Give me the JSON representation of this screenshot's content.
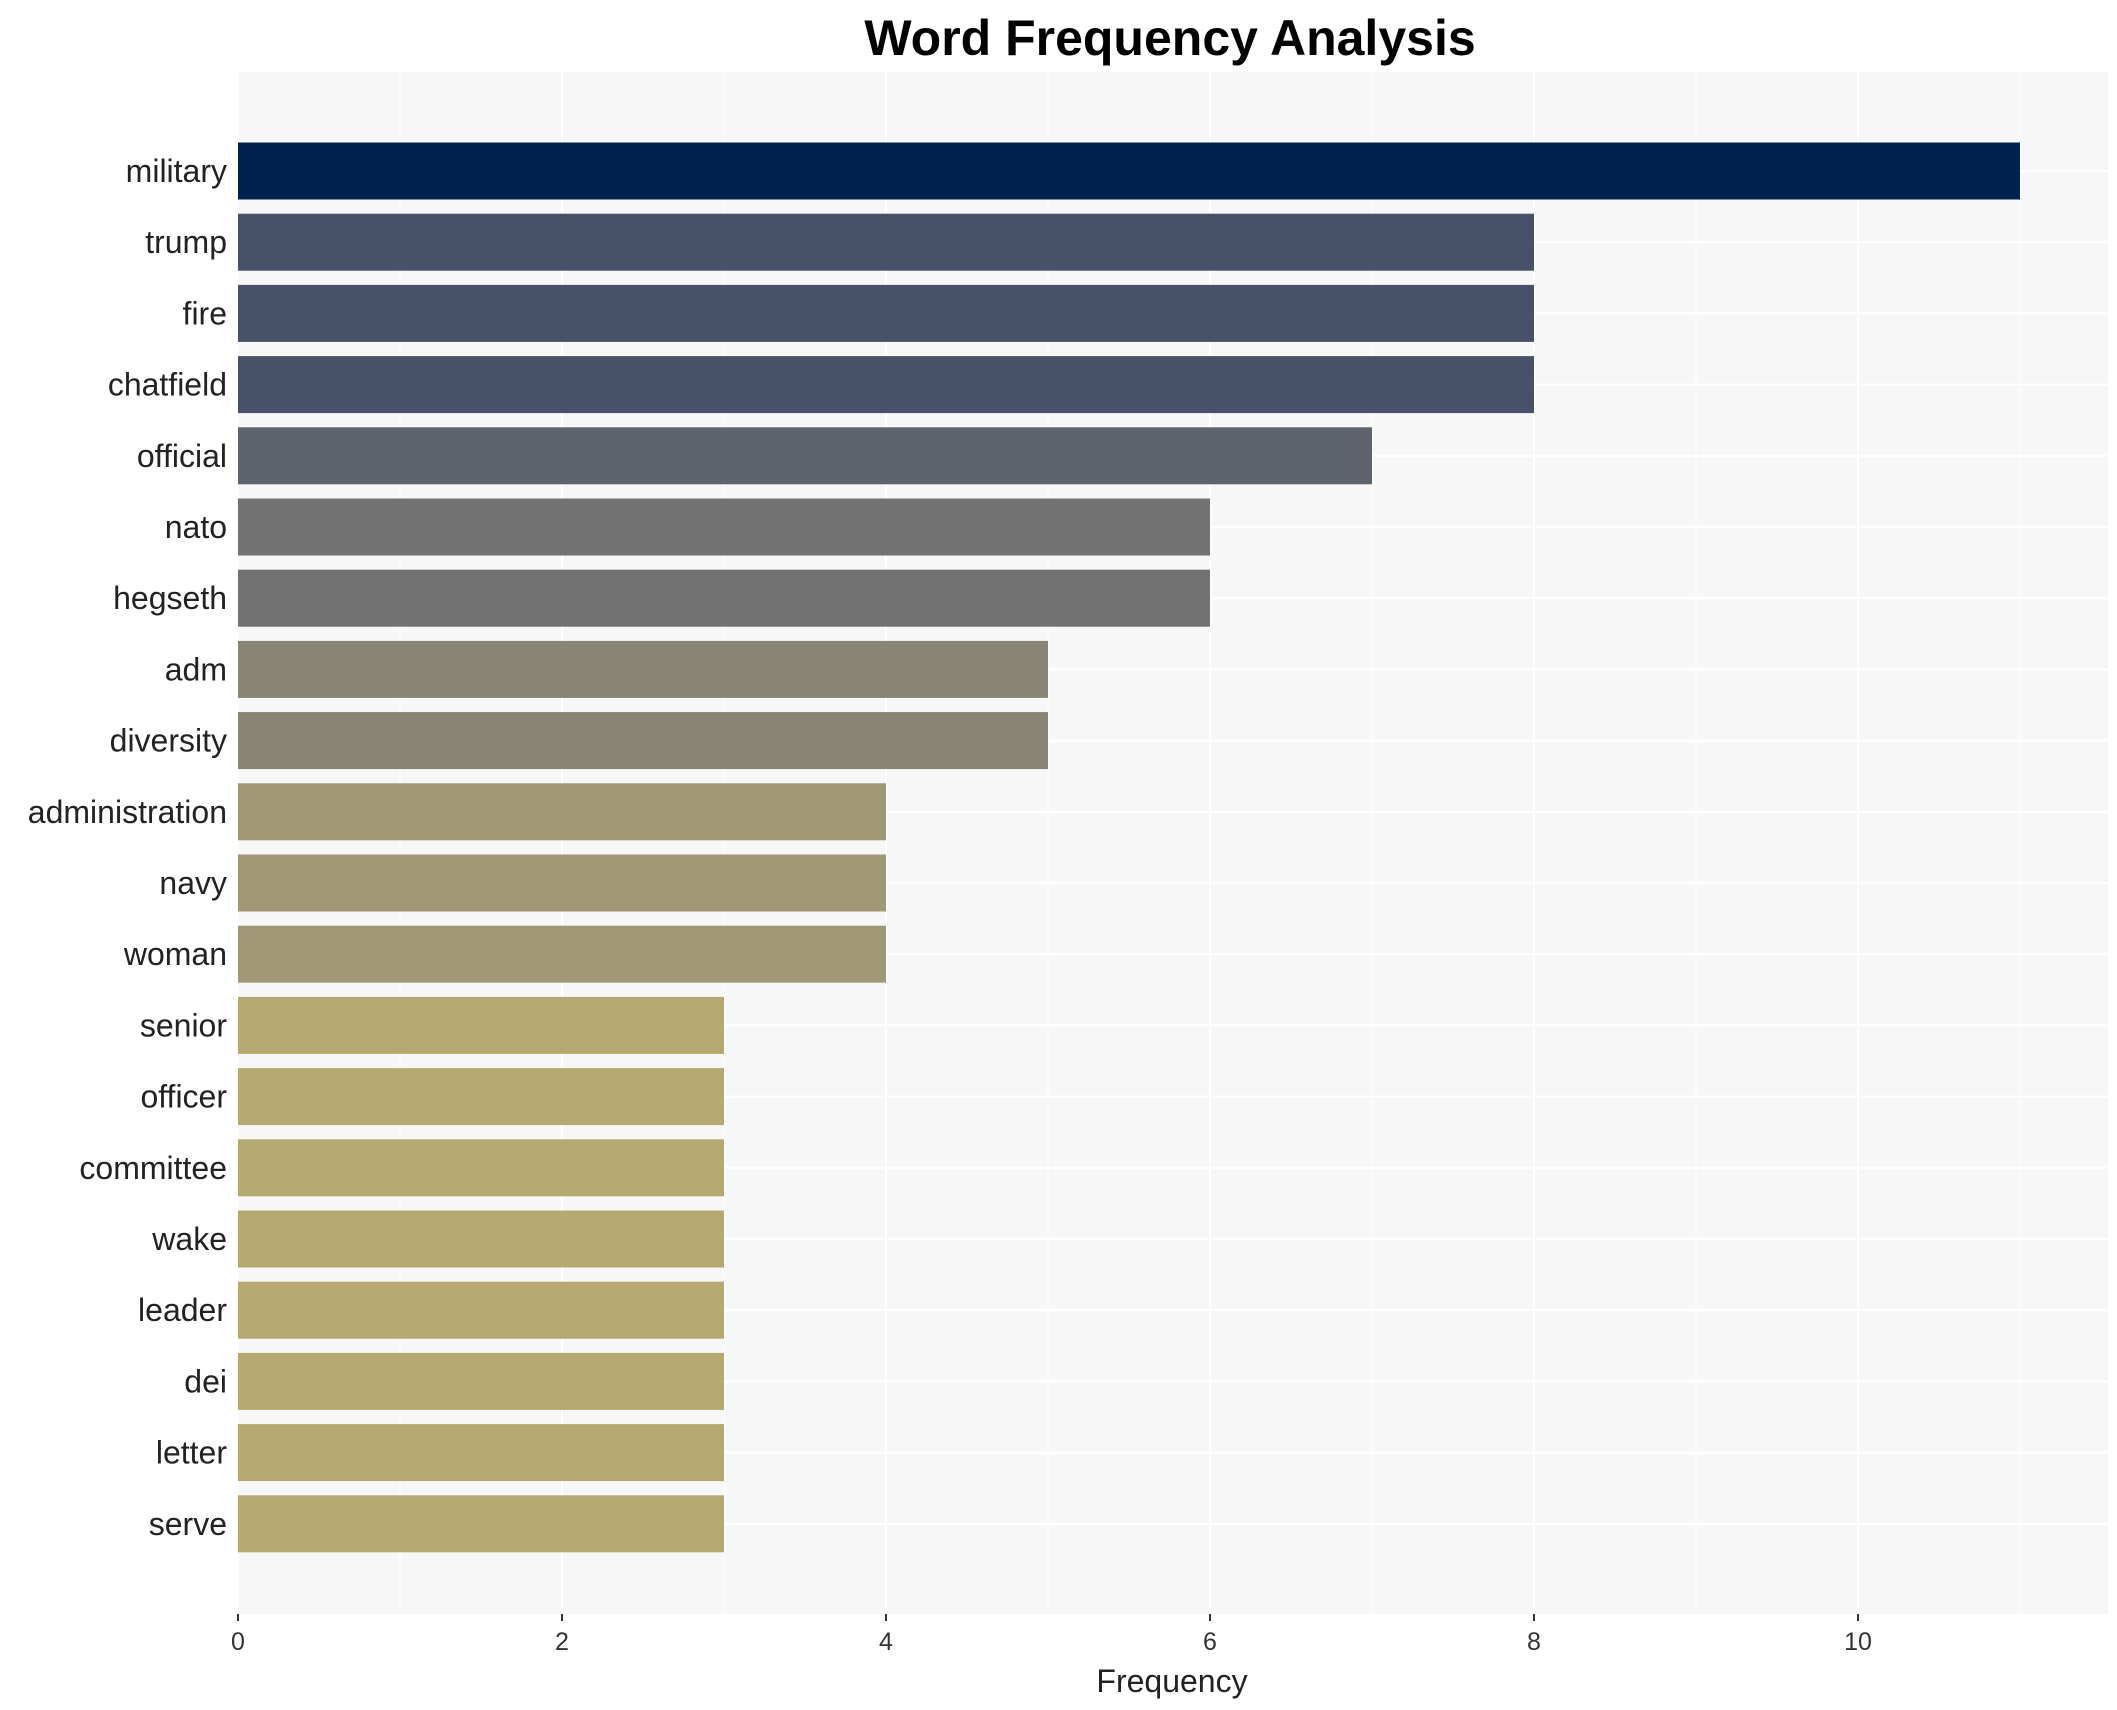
{
  "chart_data": {
    "type": "bar",
    "orientation": "horizontal",
    "title": "Word Frequency Analysis",
    "xlabel": "Frequency",
    "ylabel": "",
    "xlim": [
      0,
      11.5
    ],
    "x_ticks": [
      0,
      2,
      4,
      6,
      8,
      10
    ],
    "grid": true,
    "legend": "none",
    "categories": [
      "military",
      "trump",
      "fire",
      "chatfield",
      "official",
      "nato",
      "hegseth",
      "adm",
      "diversity",
      "administration",
      "navy",
      "woman",
      "senior",
      "officer",
      "committee",
      "wake",
      "leader",
      "dei",
      "letter",
      "serve"
    ],
    "values": [
      11,
      8,
      8,
      8,
      7,
      6,
      6,
      5,
      5,
      4,
      4,
      4,
      3,
      3,
      3,
      3,
      3,
      3,
      3,
      3
    ],
    "colors": {
      "11": "#00224e",
      "8": "#475169",
      "7": "#5f636e",
      "6": "#727272",
      "5": "#888575",
      "4": "#a09775",
      "3": "#b5a971",
      "panel_background": "#f7f7f7",
      "grid": "#ffffff"
    }
  }
}
